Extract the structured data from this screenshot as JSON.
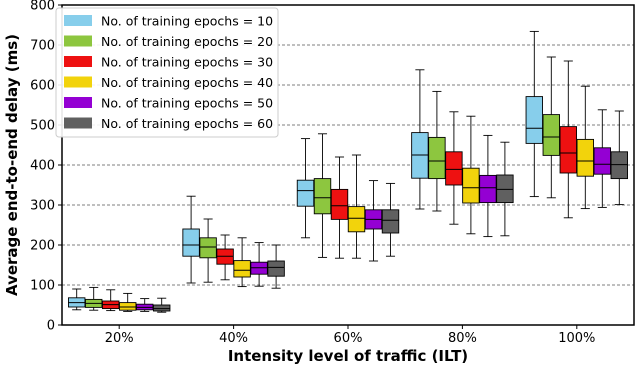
{
  "chart_data": {
    "type": "box",
    "title": "",
    "xlabel": "Intensity level of traffic (ILT)",
    "ylabel": "Average end-to-end  delay (ms)",
    "ylim": [
      0,
      800
    ],
    "yticks": [
      0,
      100,
      200,
      300,
      400,
      500,
      600,
      700,
      800
    ],
    "grid": "horizontal dashed",
    "legend_position": "top-left",
    "categories": [
      "20%",
      "40%",
      "60%",
      "80%",
      "100%"
    ],
    "series": [
      {
        "name": "No. of training epochs = 10",
        "color": "#87ceeb",
        "boxes": [
          {
            "whisker_low": 38,
            "q1": 45,
            "median": 56,
            "q3": 68,
            "whisker_high": 90
          },
          {
            "whisker_low": 105,
            "q1": 172,
            "median": 200,
            "q3": 240,
            "whisker_high": 322
          },
          {
            "whisker_low": 218,
            "q1": 297,
            "median": 336,
            "q3": 362,
            "whisker_high": 466
          },
          {
            "whisker_low": 290,
            "q1": 367,
            "median": 425,
            "q3": 481,
            "whisker_high": 638
          },
          {
            "whisker_low": 321,
            "q1": 454,
            "median": 492,
            "q3": 571,
            "whisker_high": 734
          }
        ]
      },
      {
        "name": "No. of training epochs = 20",
        "color": "#8dc63f",
        "boxes": [
          {
            "whisker_low": 37,
            "q1": 44,
            "median": 54,
            "q3": 64,
            "whisker_high": 94
          },
          {
            "whisker_low": 107,
            "q1": 168,
            "median": 195,
            "q3": 218,
            "whisker_high": 265
          },
          {
            "whisker_low": 169,
            "q1": 278,
            "median": 318,
            "q3": 366,
            "whisker_high": 478
          },
          {
            "whisker_low": 285,
            "q1": 366,
            "median": 410,
            "q3": 469,
            "whisker_high": 584
          },
          {
            "whisker_low": 318,
            "q1": 424,
            "median": 470,
            "q3": 526,
            "whisker_high": 670
          }
        ]
      },
      {
        "name": "No. of training epochs = 30",
        "color": "#ee1111",
        "boxes": [
          {
            "whisker_low": 36,
            "q1": 41,
            "median": 51,
            "q3": 60,
            "whisker_high": 88
          },
          {
            "whisker_low": 113,
            "q1": 152,
            "median": 172,
            "q3": 190,
            "whisker_high": 225
          },
          {
            "whisker_low": 167,
            "q1": 264,
            "median": 298,
            "q3": 339,
            "whisker_high": 420
          },
          {
            "whisker_low": 252,
            "q1": 350,
            "median": 389,
            "q3": 433,
            "whisker_high": 533
          },
          {
            "whisker_low": 268,
            "q1": 380,
            "median": 430,
            "q3": 496,
            "whisker_high": 660
          }
        ]
      },
      {
        "name": "No. of training epochs = 40",
        "color": "#f2d30c",
        "boxes": [
          {
            "whisker_low": 34,
            "q1": 37,
            "median": 45,
            "q3": 56,
            "whisker_high": 79
          },
          {
            "whisker_low": 96,
            "q1": 120,
            "median": 137,
            "q3": 161,
            "whisker_high": 218
          },
          {
            "whisker_low": 167,
            "q1": 233,
            "median": 267,
            "q3": 296,
            "whisker_high": 425
          },
          {
            "whisker_low": 228,
            "q1": 305,
            "median": 343,
            "q3": 392,
            "whisker_high": 522
          },
          {
            "whisker_low": 291,
            "q1": 372,
            "median": 410,
            "q3": 464,
            "whisker_high": 597
          }
        ]
      },
      {
        "name": "No. of training epochs = 50",
        "color": "#9400d3",
        "boxes": [
          {
            "whisker_low": 34,
            "q1": 38,
            "median": 44,
            "q3": 52,
            "whisker_high": 66
          },
          {
            "whisker_low": 97,
            "q1": 127,
            "median": 143,
            "q3": 157,
            "whisker_high": 206
          },
          {
            "whisker_low": 160,
            "q1": 240,
            "median": 264,
            "q3": 288,
            "whisker_high": 361
          },
          {
            "whisker_low": 221,
            "q1": 306,
            "median": 343,
            "q3": 374,
            "whisker_high": 474
          },
          {
            "whisker_low": 294,
            "q1": 377,
            "median": 402,
            "q3": 443,
            "whisker_high": 538
          }
        ]
      },
      {
        "name": "No. of training epochs = 60",
        "color": "#606060",
        "boxes": [
          {
            "whisker_low": 32,
            "q1": 35,
            "median": 41,
            "q3": 50,
            "whisker_high": 67
          },
          {
            "whisker_low": 92,
            "q1": 122,
            "median": 144,
            "q3": 160,
            "whisker_high": 200
          },
          {
            "whisker_low": 172,
            "q1": 230,
            "median": 262,
            "q3": 288,
            "whisker_high": 354
          },
          {
            "whisker_low": 223,
            "q1": 306,
            "median": 339,
            "q3": 375,
            "whisker_high": 457
          },
          {
            "whisker_low": 301,
            "q1": 366,
            "median": 401,
            "q3": 433,
            "whisker_high": 535
          }
        ]
      }
    ]
  }
}
